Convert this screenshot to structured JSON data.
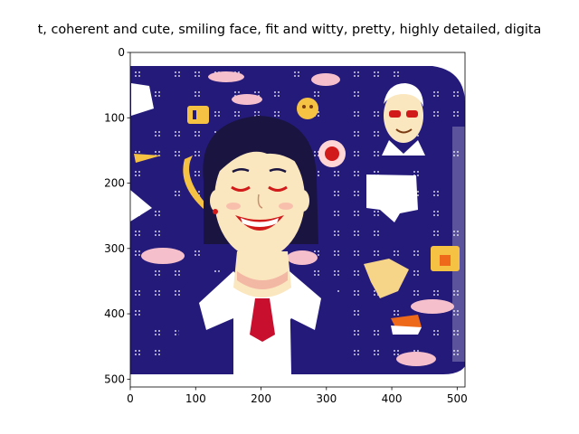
{
  "figure": {
    "title": "t,  coherent and cute, smiling face, fit and witty, pretty, highly detailed, digita"
  },
  "axes": {
    "x_ticks": [
      "0",
      "100",
      "200",
      "300",
      "400",
      "500"
    ],
    "y_ticks": [
      "0",
      "100",
      "200",
      "300",
      "400",
      "500"
    ],
    "x_tick_values": [
      0,
      100,
      200,
      300,
      400,
      500
    ],
    "y_tick_values": [
      0,
      100,
      200,
      300,
      400,
      500
    ],
    "xlim": [
      0,
      512
    ],
    "ylim": [
      512,
      0
    ]
  },
  "image": {
    "subject": "smiling woman cartoon illustration",
    "background_color": "#241a7a",
    "colors": {
      "navy": "#241a7a",
      "skin": "#fbe7bf",
      "lips": "#d11a1a",
      "hair": "#1a1440",
      "jacket": "#241a7a",
      "shirt": "#ffffff",
      "tie": "#c8102e",
      "cloud": "#f5c0cc",
      "yellow": "#f6c244",
      "orange": "#ee7a1a"
    }
  }
}
